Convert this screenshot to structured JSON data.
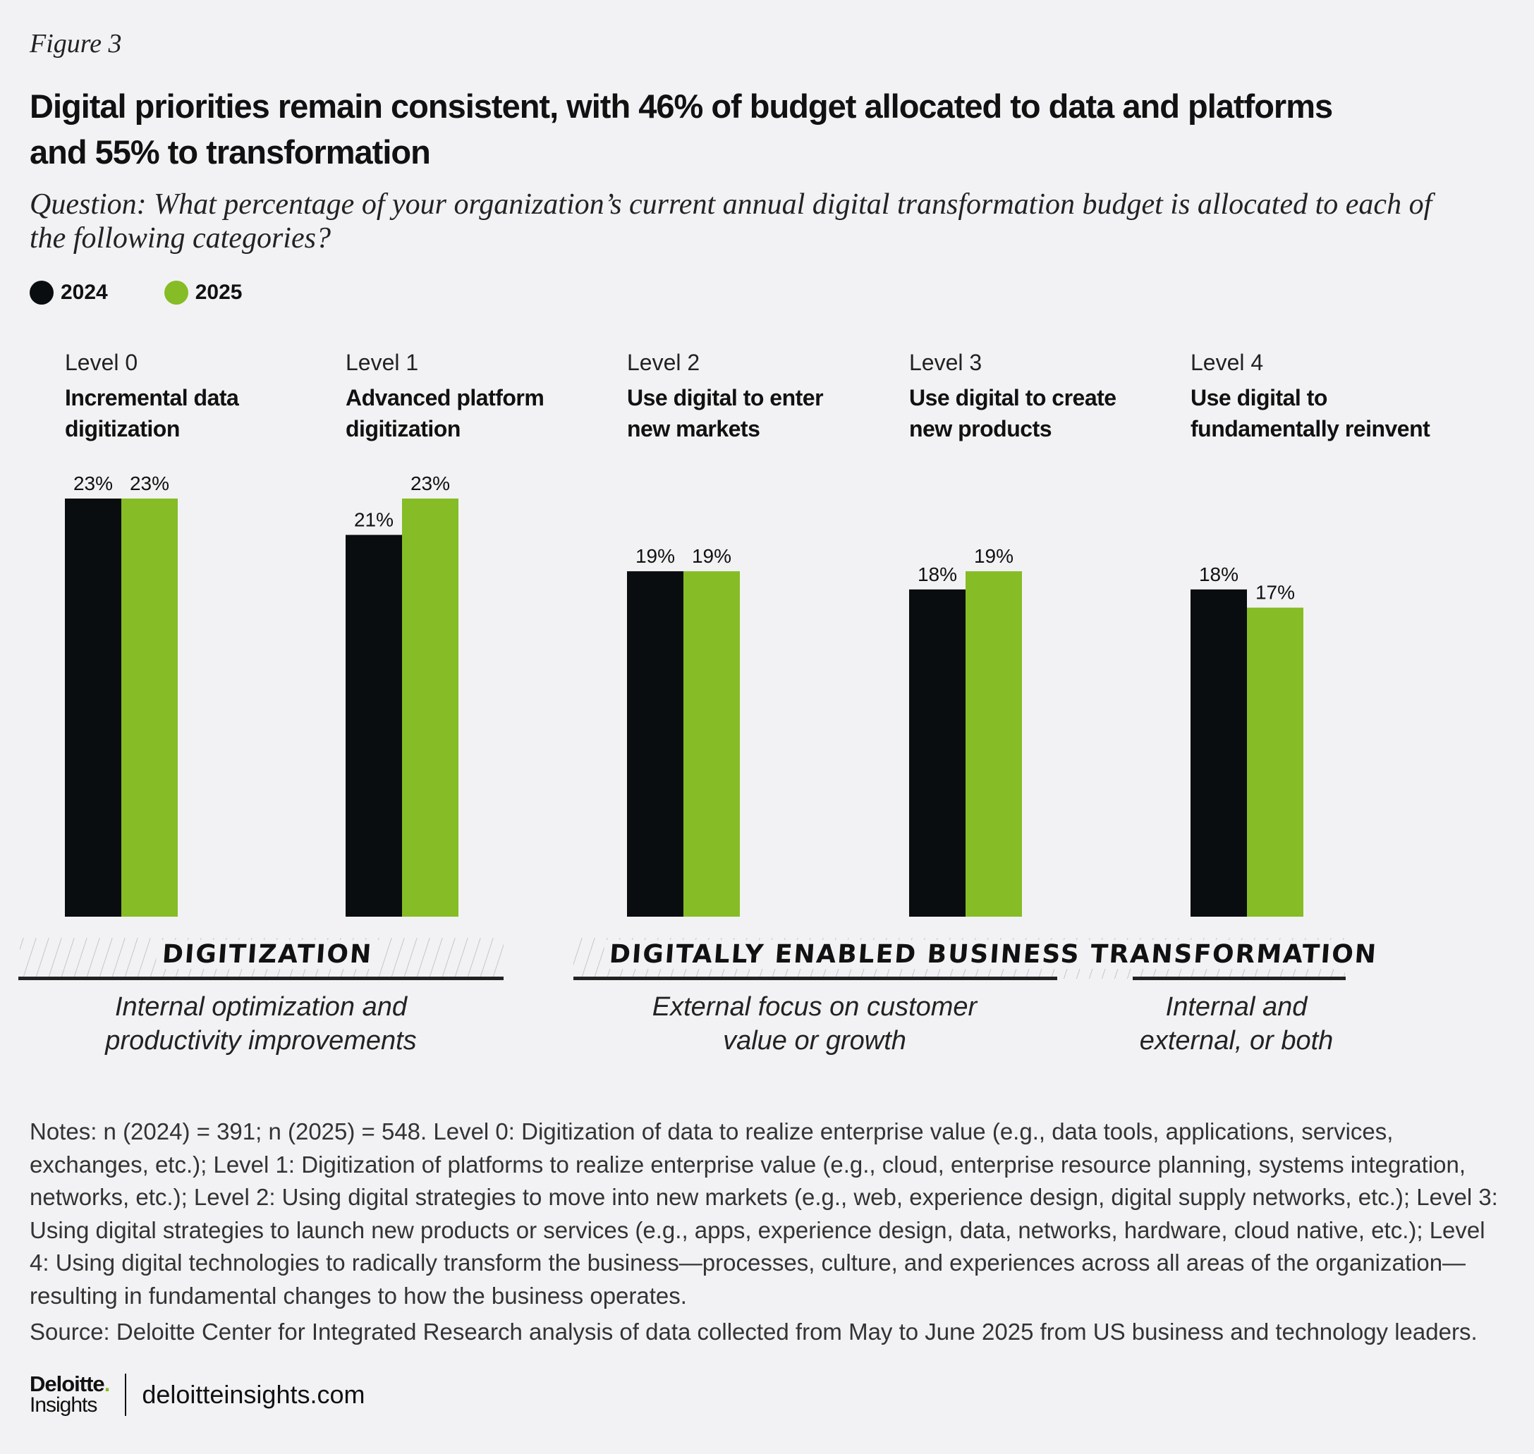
{
  "figure_label": "Figure 3",
  "title_lines": [
    "Digital priorities remain consistent, with 46% of budget allocated to data and platforms",
    "and 55% to transformation"
  ],
  "question_lines": [
    "Question: What percentage of your organization’s current annual digital transformation budget is allocated to each of",
    "the following categories?"
  ],
  "colors": {
    "2024": "#0a0d0f",
    "2025": "#86bc25",
    "background": "#f2f2f4"
  },
  "chart_data": {
    "type": "bar",
    "categories": [
      {
        "level": "Level 0",
        "name_lines": [
          "Incremental data",
          "digitization"
        ]
      },
      {
        "level": "Level 1",
        "name_lines": [
          "Advanced platform",
          "digitization"
        ]
      },
      {
        "level": "Level 2",
        "name_lines": [
          "Use digital to enter",
          "new markets"
        ]
      },
      {
        "level": "Level 3",
        "name_lines": [
          "Use digital to create",
          "new products"
        ]
      },
      {
        "level": "Level 4",
        "name_lines": [
          "Use digital to",
          "fundamentally reinvent"
        ]
      }
    ],
    "series": [
      {
        "name": "2024",
        "values": [
          23,
          21,
          19,
          18,
          18
        ],
        "labels": [
          "23%",
          "21%",
          "19%",
          "18%",
          "18%"
        ]
      },
      {
        "name": "2025",
        "values": [
          23,
          23,
          19,
          19,
          17
        ],
        "labels": [
          "23%",
          "23%",
          "19%",
          "19%",
          "17%"
        ]
      }
    ],
    "ylim": [
      0,
      23
    ],
    "legend_position": "top-left",
    "grid": false,
    "groupings": [
      {
        "label": "DIGITIZATION",
        "description_lines": [
          "Internal optimization and",
          "productivity improvements"
        ]
      },
      {
        "label": "DIGITALLY ENABLED BUSINESS TRANSFORMATION",
        "description_lines": [
          "External focus on customer",
          "value or growth"
        ]
      },
      {
        "label": "",
        "description_lines": [
          "Internal and",
          "external, or both"
        ]
      }
    ]
  },
  "notes": "Notes: n (2024) = 391; n (2025) = 548. Level 0: Digitization of data to realize enterprise value (e.g., data tools, applications, services, exchanges, etc.); Level 1: Digitization of platforms to realize enterprise value (e.g., cloud, enterprise resource planning, systems integration, networks, etc.); Level 2: Using digital strategies to move into new markets (e.g., web, experience design, digital supply networks, etc.); Level 3: Using digital strategies to launch new products or services (e.g., apps, experience design, data, networks, hardware, cloud native, etc.); Level 4: Using digital technologies to radically transform the business—processes, culture, and experiences across all areas of the organization—resulting in fundamental changes to how the business operates.",
  "source": "Source: Deloitte Center for Integrated Research analysis of data collected from May to June 2025 from US business and technology leaders.",
  "footer": {
    "logo_line1": "Deloitte",
    "logo_dot": ".",
    "logo_line2": "Insights",
    "url": "deloitteinsights.com"
  }
}
